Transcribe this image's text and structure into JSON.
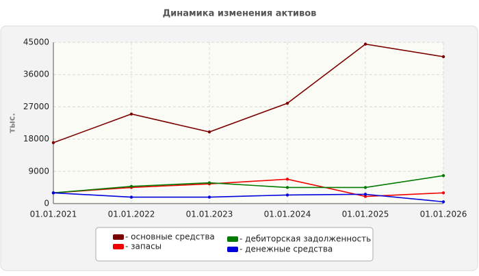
{
  "chart_data": {
    "type": "line",
    "title": "Динамика изменения активов",
    "y_label": "тыс.",
    "categories": [
      "01.01.2021",
      "01.01.2022",
      "01.01.2023",
      "01.01.2024",
      "01.01.2025",
      "01.01.2026"
    ],
    "series": [
      {
        "name": "- основные средства",
        "color": "#7a0000",
        "values": [
          17000,
          25000,
          20000,
          28000,
          44500,
          41000
        ]
      },
      {
        "name": "- запасы",
        "color": "#ee0000",
        "values": [
          3000,
          4500,
          5500,
          6800,
          2000,
          3000
        ]
      },
      {
        "name": "- дебиторская задолженность",
        "color": "#007a00",
        "values": [
          3000,
          4800,
          5800,
          4500,
          4500,
          7800
        ]
      },
      {
        "name": "- денежные средства",
        "color": "#0000dd",
        "values": [
          3000,
          1800,
          1800,
          2400,
          2600,
          500
        ]
      }
    ],
    "ylim": [
      0,
      45000
    ],
    "yticks": [
      0,
      9000,
      18000,
      27000,
      36000,
      45000
    ],
    "grid": true
  }
}
